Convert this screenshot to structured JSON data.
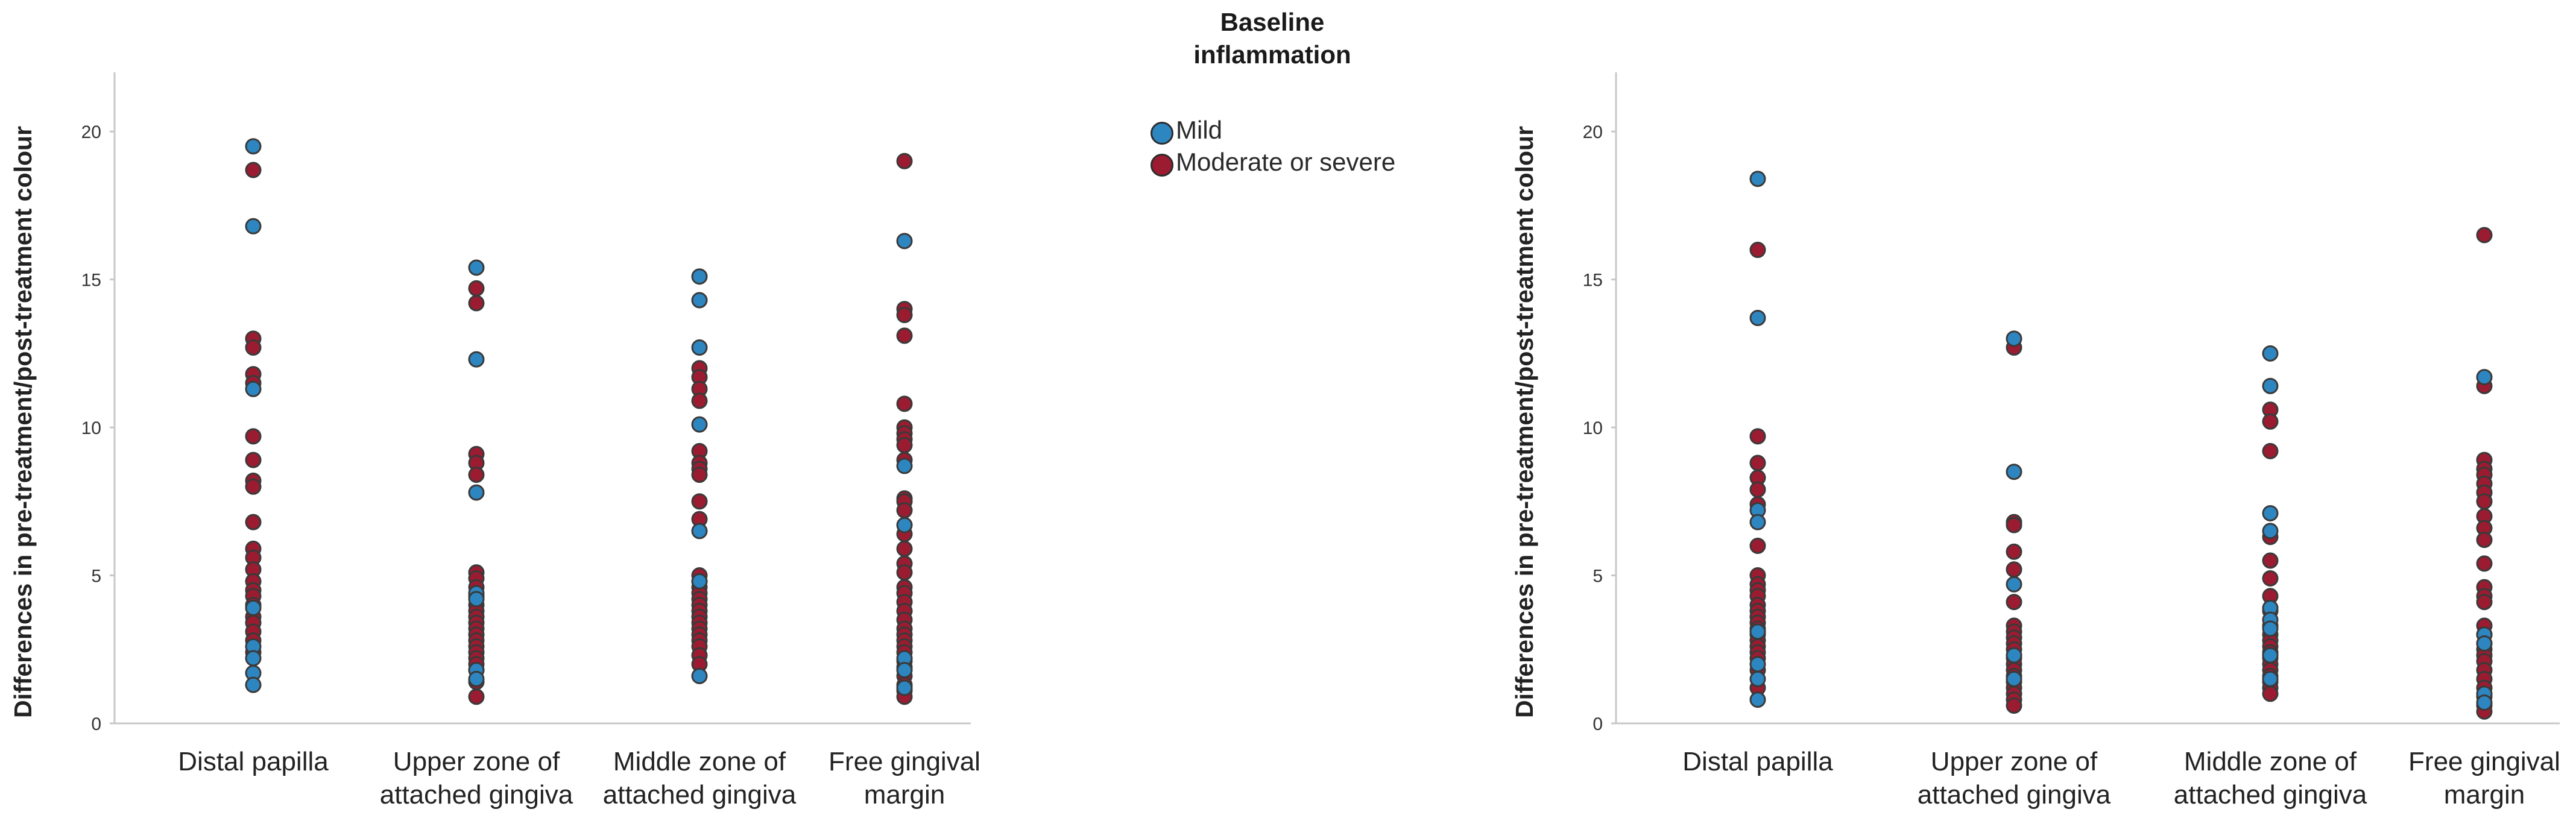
{
  "legend": {
    "title_line1": "Baseline",
    "title_line2": "inflammation",
    "items": [
      {
        "label": "Mild",
        "color": "#2e86c1"
      },
      {
        "label": "Moderate or severe",
        "color": "#9b1c31"
      }
    ]
  },
  "colors": {
    "mild": "#2e86c1",
    "severe": "#9b1c31",
    "edge": "#3a3a3a",
    "axis": "#c8c8c8",
    "text": "#222222"
  },
  "chart_data": [
    {
      "type": "scatter",
      "ylabel": "Differences in pre-treatment/post-treatment colour",
      "ylim": [
        0,
        22
      ],
      "yticks": [
        0,
        5,
        10,
        15,
        20
      ],
      "grid": false,
      "categories": [
        [
          "Distal papilla"
        ],
        [
          "Upper zone of",
          "attached gingiva"
        ],
        [
          "Middle zone of",
          "attached gingiva"
        ],
        [
          "Free gingival",
          "margin"
        ]
      ],
      "series": [
        {
          "name": "Mild",
          "values": [
            [
              19.5,
              16.8,
              11.3,
              3.9,
              2.6,
              2.2,
              1.7,
              1.3
            ],
            [
              15.4,
              12.3,
              7.8,
              4.4,
              4.2,
              1.8,
              1.5
            ],
            [
              15.1,
              14.3,
              12.7,
              10.1,
              6.5,
              4.8,
              1.6
            ],
            [
              16.3,
              8.7,
              6.7,
              2.2,
              1.8,
              1.2
            ]
          ]
        },
        {
          "name": "Moderate or severe",
          "values": [
            [
              18.7,
              13.0,
              12.7,
              11.8,
              11.5,
              9.7,
              8.9,
              8.2,
              8.0,
              6.8,
              5.9,
              5.6,
              5.2,
              4.8,
              4.5,
              4.3,
              4.0,
              3.6,
              3.4,
              3.1,
              2.8,
              2.4
            ],
            [
              14.7,
              14.2,
              9.1,
              8.8,
              8.4,
              5.1,
              4.9,
              4.6,
              4.3,
              4.0,
              3.8,
              3.6,
              3.4,
              3.2,
              3.0,
              2.8,
              2.6,
              2.4,
              2.2,
              2.0,
              1.8,
              1.4,
              0.9
            ],
            [
              12.0,
              11.7,
              11.3,
              10.9,
              9.2,
              8.8,
              8.6,
              8.4,
              7.5,
              6.9,
              5.0,
              4.8,
              4.6,
              4.4,
              4.2,
              4.0,
              3.8,
              3.6,
              3.4,
              3.2,
              3.0,
              2.8,
              2.6,
              2.3,
              2.0
            ],
            [
              19.0,
              14.0,
              13.8,
              13.1,
              10.8,
              10.0,
              9.8,
              9.6,
              9.4,
              8.9,
              7.6,
              7.5,
              7.2,
              6.4,
              5.9,
              5.4,
              5.1,
              4.6,
              4.4,
              4.1,
              3.8,
              3.5,
              3.2,
              3.0,
              2.8,
              2.6,
              2.4,
              2.1,
              1.9,
              1.6,
              1.3,
              1.1,
              0.9
            ]
          ]
        }
      ]
    },
    {
      "type": "scatter",
      "ylabel": "Differences in pre-treatment/post-treatment colour",
      "ylim": [
        0,
        22
      ],
      "yticks": [
        0,
        5,
        10,
        15,
        20
      ],
      "grid": false,
      "categories": [
        [
          "Distal papilla"
        ],
        [
          "Upper zone of",
          "attached gingiva"
        ],
        [
          "Middle zone of",
          "attached gingiva"
        ],
        [
          "Free gingival",
          "margin"
        ]
      ],
      "series": [
        {
          "name": "Mild",
          "values": [
            [
              18.4,
              13.7,
              7.2,
              6.8,
              3.1,
              2.0,
              1.5,
              0.8
            ],
            [
              13.0,
              8.5,
              4.7,
              2.3,
              1.5
            ],
            [
              12.5,
              11.4,
              7.1,
              6.5,
              3.9,
              3.5,
              3.2,
              2.3,
              1.5
            ],
            [
              11.7,
              3.0,
              2.7,
              1.0,
              0.7
            ]
          ]
        },
        {
          "name": "Moderate or severe",
          "values": [
            [
              16.0,
              9.7,
              8.8,
              8.3,
              7.9,
              7.4,
              6.0,
              5.0,
              4.7,
              4.5,
              4.3,
              4.0,
              3.8,
              3.6,
              3.4,
              3.2,
              3.0,
              2.8,
              2.6,
              2.4,
              2.2,
              1.8,
              1.2
            ],
            [
              12.7,
              6.8,
              6.7,
              5.8,
              5.2,
              4.1,
              3.3,
              3.1,
              2.9,
              2.7,
              2.5,
              2.2,
              2.0,
              1.8,
              1.6,
              1.4,
              1.2,
              1.0,
              0.8,
              0.6
            ],
            [
              10.6,
              10.2,
              9.2,
              6.3,
              5.5,
              4.9,
              4.3,
              3.8,
              3.3,
              3.0,
              2.8,
              2.6,
              2.4,
              2.2,
              2.0,
              1.8,
              1.6,
              1.4,
              1.2,
              1.0
            ],
            [
              16.5,
              11.4,
              8.9,
              8.6,
              8.4,
              8.1,
              7.8,
              7.5,
              7.0,
              6.6,
              6.2,
              5.4,
              4.6,
              4.3,
              4.1,
              3.3,
              3.0,
              2.7,
              2.5,
              2.3,
              2.1,
              1.8,
              1.5,
              1.2,
              0.9,
              0.6,
              0.4
            ]
          ]
        }
      ]
    }
  ]
}
